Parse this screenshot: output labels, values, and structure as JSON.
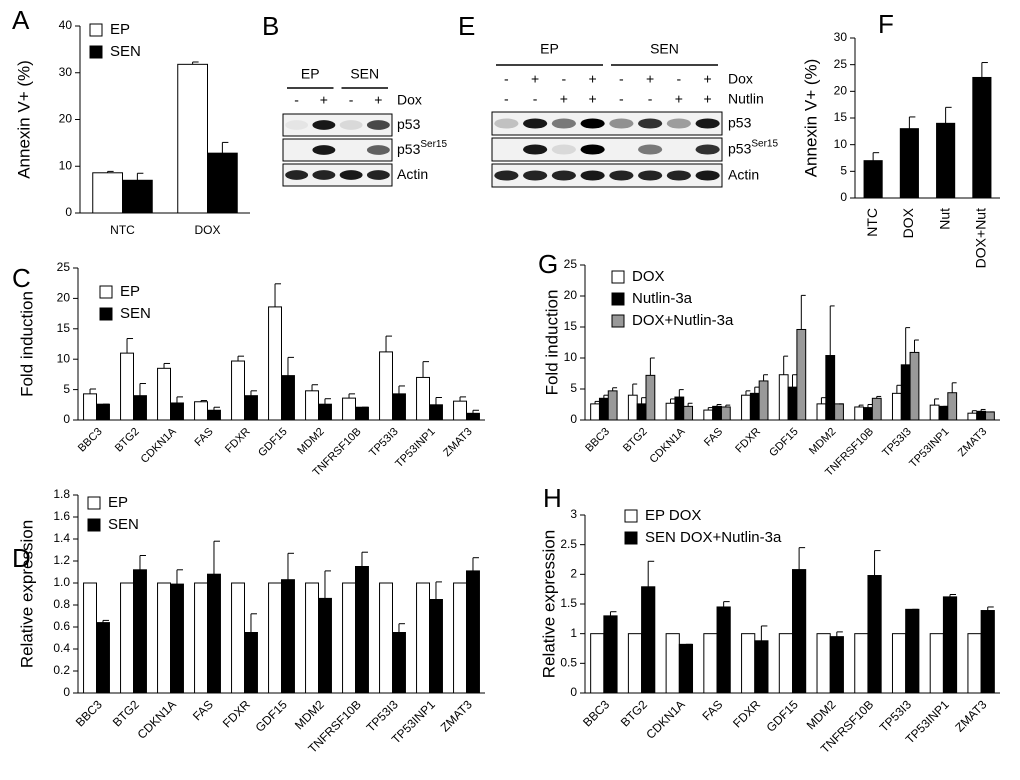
{
  "chart_data": [
    {
      "type": "bar",
      "panel": "A",
      "ylabel": "Annexin V+ (%)",
      "categories": [
        "NTC",
        "DOX"
      ],
      "series": [
        {
          "name": "EP",
          "color": "#ffffff",
          "values": [
            8.6,
            31.8
          ],
          "errors": [
            0.3,
            0.5
          ]
        },
        {
          "name": "SEN",
          "color": "#000000",
          "values": [
            7,
            12.8
          ],
          "errors": [
            1.5,
            2.3
          ]
        }
      ],
      "ylim": [
        0,
        40
      ],
      "yticks": [
        0,
        10,
        20,
        30,
        40
      ],
      "legend": "upper left",
      "grid": false
    },
    {
      "type": "bar",
      "panel": "F",
      "ylabel": "Annexin V+ (%)",
      "categories": [
        "NTC",
        "DOX",
        "Nut",
        "DOX+Nut"
      ],
      "values": [
        7,
        13,
        14,
        22.6
      ],
      "errors": [
        1.5,
        2.2,
        3,
        2.8
      ],
      "color": "#000000",
      "ylim": [
        0,
        30
      ],
      "yticks": [
        0,
        5,
        10,
        15,
        20,
        25,
        30
      ],
      "grid": false
    },
    {
      "type": "bar",
      "panel": "C",
      "ylabel": "Fold induction",
      "categories": [
        "BBC3",
        "BTG2",
        "CDKN1A",
        "FAS",
        "FDXR",
        "GDF15",
        "MDM2",
        "TNFRSF10B",
        "TP53I3",
        "TP53INP1",
        "ZMAT3"
      ],
      "series": [
        {
          "name": "EP",
          "color": "#ffffff",
          "values": [
            4.3,
            11,
            8.5,
            3,
            9.7,
            18.6,
            4.8,
            3.6,
            11.2,
            7,
            3.1
          ],
          "errors": [
            0.8,
            2.4,
            0.8,
            0.2,
            0.8,
            3.8,
            1,
            0.7,
            2.6,
            2.6,
            0.7
          ]
        },
        {
          "name": "SEN",
          "color": "#000000",
          "values": [
            2.6,
            4,
            2.8,
            1.6,
            4,
            7.3,
            2.6,
            2.1,
            4.3,
            2.5,
            1.1
          ],
          "errors": [
            0,
            2,
            1,
            0.5,
            0.8,
            3,
            0.9,
            0,
            1.3,
            1.2,
            0.5
          ]
        }
      ],
      "ylim": [
        0,
        25
      ],
      "yticks": [
        0,
        5,
        10,
        15,
        20,
        25
      ],
      "legend": "upper left",
      "grid": false
    },
    {
      "type": "bar",
      "panel": "G",
      "ylabel": "Fold induction",
      "categories": [
        "BBC3",
        "BTG2",
        "CDKN1A",
        "FAS",
        "FDXR",
        "GDF15",
        "MDM2",
        "TNFRSF10B",
        "TP53I3",
        "TP53INP1",
        "ZMAT3"
      ],
      "series": [
        {
          "name": "DOX",
          "color": "#ffffff",
          "values": [
            2.6,
            4,
            2.7,
            1.6,
            4,
            7.3,
            2.6,
            2.1,
            4.3,
            2.4,
            1.1
          ],
          "errors": [
            0.4,
            1.8,
            0.7,
            0.4,
            0.7,
            3,
            1,
            0.3,
            1.3,
            1,
            0.4
          ]
        },
        {
          "name": "Nutlin-3a",
          "color": "#000000",
          "values": [
            3.5,
            2.6,
            3.7,
            2.2,
            4.3,
            5.3,
            10.4,
            2,
            8.9,
            2.2,
            1.4
          ],
          "errors": [
            0.5,
            1,
            1.2,
            0.3,
            1,
            2,
            8,
            0.5,
            6,
            0,
            0.3
          ]
        },
        {
          "name": "DOX+Nutlin-3a",
          "color": "#999999",
          "values": [
            4.7,
            7.2,
            2.2,
            2.1,
            6.3,
            14.6,
            2.6,
            3.5,
            10.9,
            4.4,
            1.3
          ],
          "errors": [
            0.5,
            2.8,
            0.5,
            0.3,
            1,
            5.5,
            0,
            0.3,
            2,
            1.6,
            0
          ]
        }
      ],
      "ylim": [
        0,
        25
      ],
      "yticks": [
        0,
        5,
        10,
        15,
        20,
        25
      ],
      "legend": "upper left",
      "grid": false
    },
    {
      "type": "bar",
      "panel": "D",
      "ylabel": "Relative expression",
      "categories": [
        "BBC3",
        "BTG2",
        "CDKN1A",
        "FAS",
        "FDXR",
        "GDF15",
        "MDM2",
        "TNFRSF10B",
        "TP53I3",
        "TP53INP1",
        "ZMAT3"
      ],
      "series": [
        {
          "name": "EP",
          "color": "#ffffff",
          "values": [
            1,
            1,
            1,
            1,
            1,
            1,
            1,
            1,
            1,
            1,
            1
          ]
        },
        {
          "name": "SEN",
          "color": "#000000",
          "values": [
            0.64,
            1.12,
            0.99,
            1.08,
            0.55,
            1.03,
            0.86,
            1.15,
            0.55,
            0.85,
            1.11
          ],
          "errors": [
            0.02,
            0.13,
            0.13,
            0.3,
            0.17,
            0.24,
            0.25,
            0.13,
            0.08,
            0.16,
            0.12
          ]
        }
      ],
      "ylim": [
        0,
        1.8
      ],
      "yticks": [
        0,
        0.2,
        0.4,
        0.6,
        0.8,
        {
          "value": 1,
          "label": "1.0"
        },
        1.2,
        1.4,
        1.6,
        1.8
      ],
      "legend": "upper left",
      "grid": false
    },
    {
      "type": "bar",
      "panel": "H",
      "ylabel": "Relative expression",
      "categories": [
        "BBC3",
        "BTG2",
        "CDKN1A",
        "FAS",
        "FDXR",
        "GDF15",
        "MDM2",
        "TNFRSF10B",
        "TP53I3",
        "TP53INP1",
        "ZMAT3"
      ],
      "series": [
        {
          "name": "EP DOX",
          "color": "#ffffff",
          "values": [
            1,
            1,
            1,
            1,
            1,
            1,
            1,
            1,
            1,
            1,
            1
          ]
        },
        {
          "name": "SEN DOX+Nutlin-3a",
          "color": "#000000",
          "values": [
            1.3,
            1.79,
            0.82,
            1.45,
            0.88,
            2.08,
            0.95,
            1.98,
            1.41,
            1.62,
            1.39
          ],
          "errors": [
            0.07,
            0.43,
            0,
            0.09,
            0.25,
            0.37,
            0.08,
            0.42,
            0,
            0.04,
            0.06
          ]
        }
      ],
      "ylim": [
        0,
        3
      ],
      "yticks": [
        0,
        0.5,
        1,
        1.5,
        2,
        2.5,
        3
      ],
      "legend": "upper left",
      "grid": false
    }
  ],
  "blots": [
    {
      "panel": "B",
      "groups": [
        "EP",
        "SEN"
      ],
      "treatments": [
        {
          "name": "Dox",
          "lanes": [
            "-",
            "+",
            "-",
            "+"
          ]
        }
      ],
      "rows": [
        {
          "name": "p53"
        },
        {
          "name": "p53",
          "superscript": "Ser15"
        },
        {
          "name": "Actin"
        }
      ]
    },
    {
      "panel": "E",
      "groups": [
        "EP",
        "SEN"
      ],
      "treatments": [
        {
          "name": "Dox",
          "lanes": [
            "-",
            "+",
            "-",
            "+",
            "-",
            "+",
            "-",
            "+"
          ]
        },
        {
          "name": "Nutlin",
          "lanes": [
            "-",
            "-",
            "+",
            "+",
            "-",
            "-",
            "+",
            "+"
          ]
        }
      ],
      "rows": [
        {
          "name": "p53"
        },
        {
          "name": "p53",
          "superscript": "Ser15"
        },
        {
          "name": "Actin"
        }
      ]
    }
  ]
}
